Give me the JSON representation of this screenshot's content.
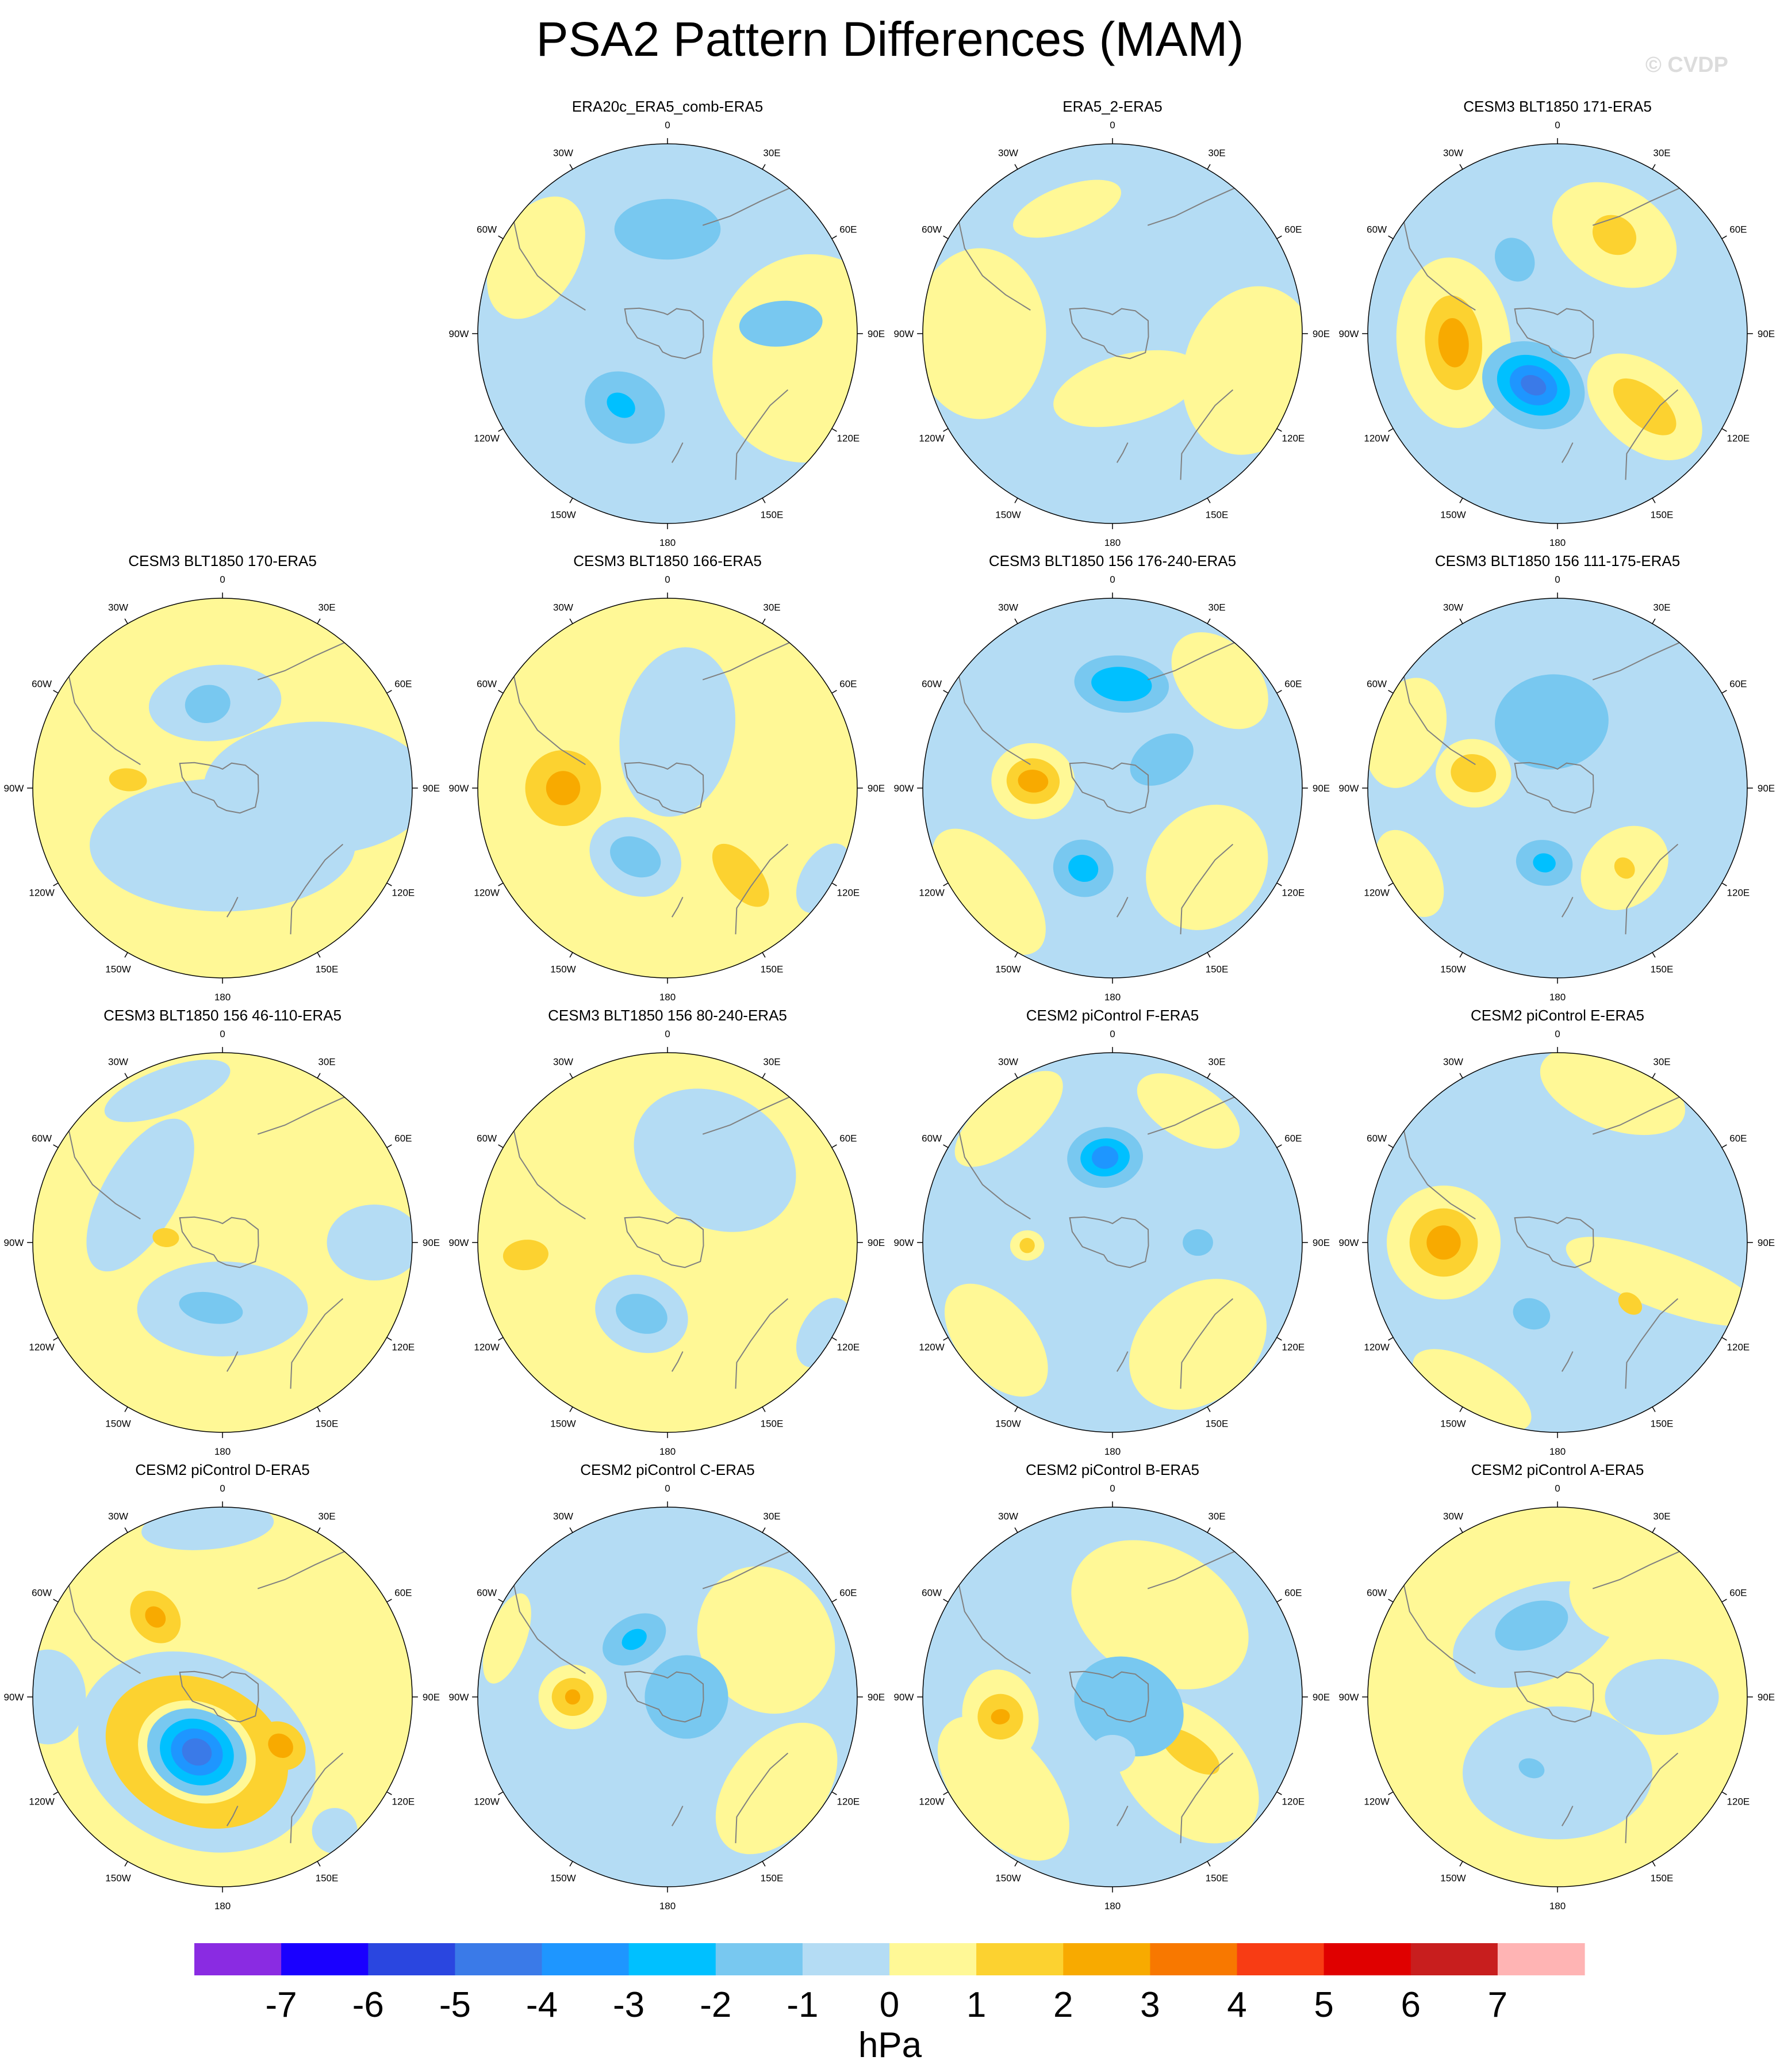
{
  "title": "PSA2 Pattern Differences (MAM)",
  "watermark": "© CVDP",
  "colors": {
    "-7": "#8a2be2",
    "-6": "#1a00ff",
    "-5": "#2a46e0",
    "-4": "#3a7ae8",
    "-3": "#1e96ff",
    "-2": "#00c0ff",
    "-1": "#78c8f0",
    "0": "#b4dcf4",
    "1": "#fff896",
    "2": "#fcd230",
    "3": "#f8aa00",
    "4": "#f87800",
    "5": "#f83c14",
    "6": "#e00000",
    "7": "#c81e1e",
    "8": "#ffb4b4",
    "land": "#808080"
  },
  "lon_labels": [
    "0",
    "30E",
    "60E",
    "90E",
    "120E",
    "150E",
    "180",
    "150W",
    "120W",
    "90W",
    "60W",
    "30W"
  ],
  "chart_data": {
    "type": "contour-map-panels",
    "projection": "south-polar-stereographic",
    "colorbar": {
      "levels": [
        "-7",
        "-6",
        "-5",
        "-4",
        "-3",
        "-2",
        "-1",
        "0",
        "1",
        "2",
        "3",
        "4",
        "5",
        "6",
        "7"
      ],
      "unit": "hPa"
    },
    "panels": [
      {
        "title": "ERA20c_ERA5_comb-ERA5",
        "base": 0,
        "blobs": [
          {
            "lon": 100,
            "r": 0.75,
            "rx": 0.55,
            "ry": 0.5,
            "v": 1
          },
          {
            "lon": 300,
            "r": 0.8,
            "rx": 0.35,
            "ry": 0.22,
            "v": 1
          },
          {
            "lon": 360,
            "r": 0.55,
            "rx": 0.28,
            "ry": 0.16,
            "v": -1
          },
          {
            "lon": 85,
            "r": 0.6,
            "rx": 0.12,
            "ry": 0.22,
            "v": -1
          },
          {
            "lon": 210,
            "r": 0.45,
            "rx": 0.22,
            "ry": 0.18,
            "v": -1
          },
          {
            "lon": 213,
            "r": 0.45,
            "rx": 0.08,
            "ry": 0.06,
            "v": -2
          }
        ]
      },
      {
        "title": "ERA5_2-ERA5",
        "base": 0,
        "blobs": [
          {
            "lon": 270,
            "r": 0.7,
            "rx": 0.45,
            "ry": 0.35,
            "v": 1
          },
          {
            "lon": 105,
            "r": 0.75,
            "rx": 0.45,
            "ry": 0.35,
            "v": 1
          },
          {
            "lon": 340,
            "r": 0.7,
            "rx": 0.3,
            "ry": 0.12,
            "v": 1
          },
          {
            "lon": 165,
            "r": 0.3,
            "rx": 0.4,
            "ry": 0.18,
            "v": 1
          }
        ]
      },
      {
        "title": "CESM3 BLT1850 171-ERA5",
        "base": 0,
        "blobs": [
          {
            "lon": 265,
            "r": 0.55,
            "rx": 0.45,
            "ry": 0.3,
            "v": 1
          },
          {
            "lon": 265,
            "r": 0.55,
            "rx": 0.25,
            "ry": 0.15,
            "v": 2
          },
          {
            "lon": 265,
            "r": 0.55,
            "rx": 0.13,
            "ry": 0.08,
            "v": 3
          },
          {
            "lon": 30,
            "r": 0.6,
            "rx": 0.35,
            "ry": 0.25,
            "v": 1
          },
          {
            "lon": 30,
            "r": 0.6,
            "rx": 0.12,
            "ry": 0.1,
            "v": 2
          },
          {
            "lon": 130,
            "r": 0.6,
            "rx": 0.22,
            "ry": 0.35,
            "v": 1
          },
          {
            "lon": 130,
            "r": 0.6,
            "rx": 0.1,
            "ry": 0.2,
            "v": 2
          },
          {
            "lon": 205,
            "r": 0.3,
            "rx": 0.28,
            "ry": 0.22,
            "v": -1
          },
          {
            "lon": 205,
            "r": 0.3,
            "rx": 0.2,
            "ry": 0.15,
            "v": -2
          },
          {
            "lon": 205,
            "r": 0.3,
            "rx": 0.13,
            "ry": 0.1,
            "v": -3
          },
          {
            "lon": 205,
            "r": 0.3,
            "rx": 0.07,
            "ry": 0.05,
            "v": -4
          },
          {
            "lon": 330,
            "r": 0.45,
            "rx": 0.1,
            "ry": 0.12,
            "v": -1
          }
        ]
      },
      {
        "title": "CESM3 BLT1850 170-ERA5",
        "base": 1,
        "blobs": [
          {
            "lon": 180,
            "r": 0.3,
            "rx": 0.7,
            "ry": 0.35,
            "v": 0
          },
          {
            "lon": 90,
            "r": 0.5,
            "rx": 0.35,
            "ry": 0.6,
            "v": 0
          },
          {
            "lon": 355,
            "r": 0.45,
            "rx": 0.35,
            "ry": 0.2,
            "v": 0
          },
          {
            "lon": 350,
            "r": 0.45,
            "rx": 0.12,
            "ry": 0.1,
            "v": -1
          },
          {
            "lon": 275,
            "r": 0.5,
            "rx": 0.06,
            "ry": 0.1,
            "v": 2
          }
        ]
      },
      {
        "title": "CESM3 BLT1850 166-ERA5",
        "base": 1,
        "blobs": [
          {
            "lon": 10,
            "r": 0.3,
            "rx": 0.3,
            "ry": 0.45,
            "v": 0
          },
          {
            "lon": 205,
            "r": 0.4,
            "rx": 0.25,
            "ry": 0.2,
            "v": 0
          },
          {
            "lon": 205,
            "r": 0.4,
            "rx": 0.14,
            "ry": 0.1,
            "v": -1
          },
          {
            "lon": 120,
            "r": 0.95,
            "rx": 0.2,
            "ry": 0.12,
            "v": 0
          },
          {
            "lon": 270,
            "r": 0.55,
            "rx": 0.2,
            "ry": 0.2,
            "v": 2
          },
          {
            "lon": 270,
            "r": 0.55,
            "rx": 0.09,
            "ry": 0.09,
            "v": 3
          },
          {
            "lon": 140,
            "r": 0.6,
            "rx": 0.1,
            "ry": 0.2,
            "v": 2
          }
        ]
      },
      {
        "title": "CESM3 BLT1850 156 176-240-ERA5",
        "base": 0,
        "blobs": [
          {
            "lon": 130,
            "r": 0.65,
            "rx": 0.35,
            "ry": 0.3,
            "v": 1
          },
          {
            "lon": 230,
            "r": 0.85,
            "rx": 0.4,
            "ry": 0.2,
            "v": 1
          },
          {
            "lon": 45,
            "r": 0.8,
            "rx": 0.3,
            "ry": 0.2,
            "v": 1
          },
          {
            "lon": 275,
            "r": 0.42,
            "rx": 0.2,
            "ry": 0.22,
            "v": 1
          },
          {
            "lon": 275,
            "r": 0.42,
            "rx": 0.12,
            "ry": 0.14,
            "v": 2
          },
          {
            "lon": 275,
            "r": 0.42,
            "rx": 0.06,
            "ry": 0.08,
            "v": 3
          },
          {
            "lon": 5,
            "r": 0.55,
            "rx": 0.25,
            "ry": 0.15,
            "v": -1
          },
          {
            "lon": 5,
            "r": 0.55,
            "rx": 0.16,
            "ry": 0.09,
            "v": -2
          },
          {
            "lon": 200,
            "r": 0.45,
            "rx": 0.16,
            "ry": 0.15,
            "v": -1
          },
          {
            "lon": 200,
            "r": 0.45,
            "rx": 0.08,
            "ry": 0.07,
            "v": -2
          },
          {
            "lon": 60,
            "r": 0.3,
            "rx": 0.12,
            "ry": 0.18,
            "v": -1
          }
        ]
      },
      {
        "title": "CESM3 BLT1850 156 111-175-ERA5",
        "base": 0,
        "blobs": [
          {
            "lon": 280,
            "r": 0.45,
            "rx": 0.18,
            "ry": 0.2,
            "v": 1
          },
          {
            "lon": 280,
            "r": 0.45,
            "rx": 0.1,
            "ry": 0.12,
            "v": 2
          },
          {
            "lon": 290,
            "r": 0.85,
            "rx": 0.3,
            "ry": 0.2,
            "v": 1
          },
          {
            "lon": 140,
            "r": 0.55,
            "rx": 0.25,
            "ry": 0.2,
            "v": 1
          },
          {
            "lon": 140,
            "r": 0.55,
            "rx": 0.05,
            "ry": 0.06,
            "v": 2
          },
          {
            "lon": 240,
            "r": 0.9,
            "rx": 0.25,
            "ry": 0.15,
            "v": 1
          },
          {
            "lon": 355,
            "r": 0.35,
            "rx": 0.3,
            "ry": 0.25,
            "v": -1
          },
          {
            "lon": 190,
            "r": 0.4,
            "rx": 0.15,
            "ry": 0.12,
            "v": -1
          },
          {
            "lon": 190,
            "r": 0.4,
            "rx": 0.06,
            "ry": 0.05,
            "v": -2
          }
        ]
      },
      {
        "title": "CESM3 BLT1850 156 46-110-ERA5",
        "base": 1,
        "blobs": [
          {
            "lon": 300,
            "r": 0.5,
            "rx": 0.45,
            "ry": 0.2,
            "v": 0
          },
          {
            "lon": 180,
            "r": 0.35,
            "rx": 0.45,
            "ry": 0.25,
            "v": 0
          },
          {
            "lon": 90,
            "r": 0.8,
            "rx": 0.2,
            "ry": 0.25,
            "v": 0
          },
          {
            "lon": 340,
            "r": 0.85,
            "rx": 0.35,
            "ry": 0.12,
            "v": 0
          },
          {
            "lon": 190,
            "r": 0.35,
            "rx": 0.17,
            "ry": 0.08,
            "v": -1
          },
          {
            "lon": 275,
            "r": 0.3,
            "rx": 0.05,
            "ry": 0.07,
            "v": 2
          }
        ]
      },
      {
        "title": "CESM3 BLT1850 156 80-240-ERA5",
        "base": 1,
        "blobs": [
          {
            "lon": 200,
            "r": 0.4,
            "rx": 0.25,
            "ry": 0.2,
            "v": 0
          },
          {
            "lon": 200,
            "r": 0.4,
            "rx": 0.14,
            "ry": 0.1,
            "v": -1
          },
          {
            "lon": 30,
            "r": 0.5,
            "rx": 0.45,
            "ry": 0.35,
            "v": 0
          },
          {
            "lon": 120,
            "r": 0.95,
            "rx": 0.2,
            "ry": 0.12,
            "v": 0
          },
          {
            "lon": 265,
            "r": 0.75,
            "rx": 0.08,
            "ry": 0.12,
            "v": 2
          }
        ]
      },
      {
        "title": "CESM2 piControl F-ERA5",
        "base": 0,
        "blobs": [
          {
            "lon": 320,
            "r": 0.85,
            "rx": 0.35,
            "ry": 0.15,
            "v": 1
          },
          {
            "lon": 140,
            "r": 0.7,
            "rx": 0.4,
            "ry": 0.3,
            "v": 1
          },
          {
            "lon": 230,
            "r": 0.8,
            "rx": 0.35,
            "ry": 0.2,
            "v": 1
          },
          {
            "lon": 30,
            "r": 0.8,
            "rx": 0.3,
            "ry": 0.15,
            "v": 1
          },
          {
            "lon": 268,
            "r": 0.45,
            "rx": 0.08,
            "ry": 0.09,
            "v": 1
          },
          {
            "lon": 268,
            "r": 0.45,
            "rx": 0.04,
            "ry": 0.04,
            "v": 2
          },
          {
            "lon": 355,
            "r": 0.45,
            "rx": 0.2,
            "ry": 0.16,
            "v": -1
          },
          {
            "lon": 355,
            "r": 0.45,
            "rx": 0.13,
            "ry": 0.1,
            "v": -2
          },
          {
            "lon": 355,
            "r": 0.45,
            "rx": 0.07,
            "ry": 0.06,
            "v": -3
          },
          {
            "lon": 90,
            "r": 0.45,
            "rx": 0.07,
            "ry": 0.08,
            "v": -1
          }
        ]
      },
      {
        "title": "CESM2 piControl E-ERA5",
        "base": 0,
        "blobs": [
          {
            "lon": 270,
            "r": 0.6,
            "rx": 0.3,
            "ry": 0.3,
            "v": 1
          },
          {
            "lon": 270,
            "r": 0.6,
            "rx": 0.18,
            "ry": 0.18,
            "v": 2
          },
          {
            "lon": 270,
            "r": 0.6,
            "rx": 0.09,
            "ry": 0.09,
            "v": 3
          },
          {
            "lon": 110,
            "r": 0.6,
            "rx": 0.15,
            "ry": 0.55,
            "v": 1
          },
          {
            "lon": 130,
            "r": 0.5,
            "rx": 0.05,
            "ry": 0.07,
            "v": 2
          },
          {
            "lon": 20,
            "r": 0.85,
            "rx": 0.4,
            "ry": 0.2,
            "v": 1
          },
          {
            "lon": 210,
            "r": 0.9,
            "rx": 0.35,
            "ry": 0.15,
            "v": 1
          },
          {
            "lon": 200,
            "r": 0.4,
            "rx": 0.1,
            "ry": 0.08,
            "v": -1
          }
        ]
      },
      {
        "title": "CESM2 piControl D-ERA5",
        "base": 1,
        "blobs": [
          {
            "lon": 205,
            "r": 0.32,
            "rx": 0.65,
            "ry": 0.5,
            "v": 0
          },
          {
            "lon": 205,
            "r": 0.32,
            "rx": 0.5,
            "ry": 0.38,
            "v": 2
          },
          {
            "lon": 205,
            "r": 0.32,
            "rx": 0.32,
            "ry": 0.26,
            "v": 1
          },
          {
            "lon": 205,
            "r": 0.32,
            "rx": 0.27,
            "ry": 0.22,
            "v": -1
          },
          {
            "lon": 205,
            "r": 0.32,
            "rx": 0.2,
            "ry": 0.17,
            "v": -2
          },
          {
            "lon": 205,
            "r": 0.32,
            "rx": 0.14,
            "ry": 0.12,
            "v": -3
          },
          {
            "lon": 205,
            "r": 0.32,
            "rx": 0.08,
            "ry": 0.07,
            "v": -4
          },
          {
            "lon": 320,
            "r": 0.55,
            "rx": 0.12,
            "ry": 0.15,
            "v": 2
          },
          {
            "lon": 320,
            "r": 0.55,
            "rx": 0.05,
            "ry": 0.06,
            "v": 3
          },
          {
            "lon": 130,
            "r": 0.4,
            "rx": 0.12,
            "ry": 0.14,
            "v": 2
          },
          {
            "lon": 130,
            "r": 0.4,
            "rx": 0.06,
            "ry": 0.07,
            "v": 3
          },
          {
            "lon": 270,
            "r": 0.92,
            "rx": 0.25,
            "ry": 0.2,
            "v": 0
          },
          {
            "lon": 140,
            "r": 0.92,
            "rx": 0.12,
            "ry": 0.12,
            "v": 0
          },
          {
            "lon": 355,
            "r": 0.9,
            "rx": 0.35,
            "ry": 0.12,
            "v": 0
          }
        ]
      },
      {
        "title": "CESM2 piControl C-ERA5",
        "base": 0,
        "blobs": [
          {
            "lon": 60,
            "r": 0.6,
            "rx": 0.4,
            "ry": 0.35,
            "v": 1
          },
          {
            "lon": 130,
            "r": 0.75,
            "rx": 0.4,
            "ry": 0.25,
            "v": 1
          },
          {
            "lon": 290,
            "r": 0.9,
            "rx": 0.25,
            "ry": 0.1,
            "v": 1
          },
          {
            "lon": 270,
            "r": 0.5,
            "rx": 0.17,
            "ry": 0.18,
            "v": 1
          },
          {
            "lon": 270,
            "r": 0.5,
            "rx": 0.1,
            "ry": 0.11,
            "v": 2
          },
          {
            "lon": 270,
            "r": 0.5,
            "rx": 0.04,
            "ry": 0.04,
            "v": 3
          },
          {
            "lon": 330,
            "r": 0.35,
            "rx": 0.18,
            "ry": 0.12,
            "v": -1
          },
          {
            "lon": 330,
            "r": 0.35,
            "rx": 0.07,
            "ry": 0.05,
            "v": -2
          },
          {
            "lon": 90,
            "r": 0.1,
            "rx": 0.22,
            "ry": 0.22,
            "v": -1
          }
        ]
      },
      {
        "title": "CESM2 piControl B-ERA5",
        "base": 0,
        "blobs": [
          {
            "lon": 30,
            "r": 0.5,
            "rx": 0.5,
            "ry": 0.35,
            "v": 1
          },
          {
            "lon": 135,
            "r": 0.55,
            "rx": 0.3,
            "ry": 0.45,
            "v": 1
          },
          {
            "lon": 230,
            "r": 0.75,
            "rx": 0.45,
            "ry": 0.25,
            "v": 1
          },
          {
            "lon": 260,
            "r": 0.6,
            "rx": 0.25,
            "ry": 0.2,
            "v": 1
          },
          {
            "lon": 260,
            "r": 0.6,
            "rx": 0.12,
            "ry": 0.12,
            "v": 2
          },
          {
            "lon": 260,
            "r": 0.6,
            "rx": 0.04,
            "ry": 0.05,
            "v": 3
          },
          {
            "lon": 125,
            "r": 0.5,
            "rx": 0.08,
            "ry": 0.18,
            "v": 2
          },
          {
            "lon": 120,
            "r": 0.1,
            "rx": 0.25,
            "ry": 0.3,
            "v": -1
          },
          {
            "lon": 180,
            "r": 0.3,
            "rx": 0.12,
            "ry": 0.1,
            "v": 0
          }
        ]
      },
      {
        "title": "CESM2 piControl A-ERA5",
        "base": 1,
        "blobs": [
          {
            "lon": 340,
            "r": 0.35,
            "rx": 0.45,
            "ry": 0.25,
            "v": 0
          },
          {
            "lon": 180,
            "r": 0.4,
            "rx": 0.5,
            "ry": 0.35,
            "v": 0
          },
          {
            "lon": 90,
            "r": 0.55,
            "rx": 0.2,
            "ry": 0.3,
            "v": 0
          },
          {
            "lon": 340,
            "r": 0.4,
            "rx": 0.2,
            "ry": 0.12,
            "v": -1
          },
          {
            "lon": 200,
            "r": 0.4,
            "rx": 0.07,
            "ry": 0.05,
            "v": -1
          },
          {
            "lon": 30,
            "r": 0.6,
            "rx": 0.25,
            "ry": 0.2,
            "v": 1
          }
        ]
      }
    ]
  }
}
